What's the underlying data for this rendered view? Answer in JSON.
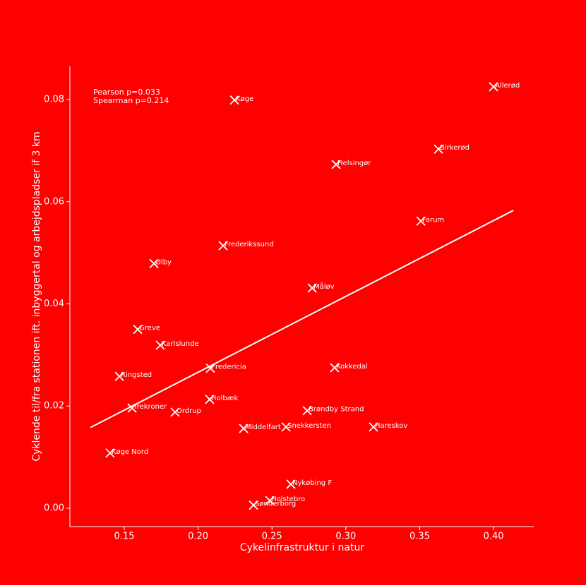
{
  "chart_data": {
    "type": "scatter",
    "x_label": "Cykelinfrastruktur i natur",
    "y_label": "Cyklende til/fra stationen ift. inbyggertal og arbejdspladser if 3 km",
    "annotations": [
      "Pearson p=0.033",
      "Spearman p=0.214"
    ],
    "background": "#ff0000",
    "color": "#ffffff",
    "labels": [
      "Allerød",
      "Køge",
      "Birkerød",
      "Helsingør",
      "Farum",
      "Frederikssund",
      "Ølby",
      "Måløv",
      "Greve",
      "Karlslunde",
      "Kokkedal",
      "Fredericia",
      "Ringsted",
      "Holbæk",
      "Trekroner",
      "Brøndby Strand",
      "Ordrup",
      "Snekkersten",
      "Middelfart",
      "Hareskov",
      "Køge Nord",
      "Nykøbing F",
      "Holstebro",
      "Sønderborg"
    ],
    "x": [
      0.4,
      0.2246,
      0.3627,
      0.2934,
      0.3508,
      0.2169,
      0.1701,
      0.2772,
      0.1591,
      0.1744,
      0.2924,
      0.2083,
      0.1467,
      0.2078,
      0.1553,
      0.2738,
      0.1844,
      0.2595,
      0.2308,
      0.3187,
      0.1404,
      0.2628,
      0.2485,
      0.2375
    ],
    "y": [
      0.0825,
      0.0799,
      0.0703,
      0.0673,
      0.0562,
      0.0514,
      0.0479,
      0.0431,
      0.035,
      0.0319,
      0.0275,
      0.0274,
      0.0258,
      0.0213,
      0.0196,
      0.0191,
      0.0188,
      0.0159,
      0.0156,
      0.0159,
      0.0108,
      0.0047,
      0.0015,
      0.0006
    ],
    "trendline": {
      "x": [
        0.1271,
        0.4134
      ],
      "y": [
        0.0158,
        0.0583
      ]
    },
    "xlim": [
      0.1132,
      0.4272
    ],
    "ylim": [
      -0.0036,
      0.0865
    ],
    "xticks": [
      0.15,
      {
        "value": 0.2,
        "label": "0.20"
      },
      0.25,
      {
        "value": 0.3,
        "label": "0.30"
      },
      0.35,
      {
        "value": 0.4,
        "label": "0.40"
      }
    ],
    "yticks": [
      {
        "value": 0,
        "label": "0.00"
      },
      0.02,
      0.04,
      0.06,
      0.08
    ]
  }
}
